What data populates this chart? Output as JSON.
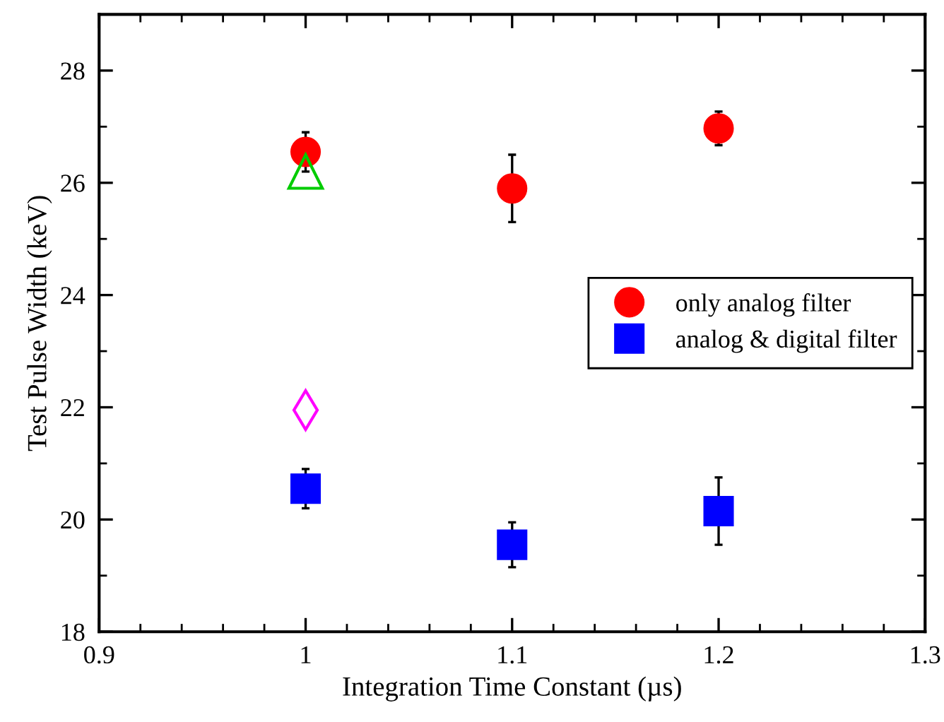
{
  "chart_data": {
    "type": "scatter",
    "xlabel": "Integration Time Constant (µs)",
    "ylabel": "Test Pulse Width (keV)",
    "xlim": [
      0.9,
      1.3
    ],
    "xticks": [
      0.9,
      1,
      1.1,
      1.2,
      1.3
    ],
    "ylim": [
      18,
      29
    ],
    "yticks": [
      18,
      20,
      22,
      24,
      26,
      28
    ],
    "legend": "center right",
    "grid": false,
    "series": [
      {
        "name": "only analog filter",
        "color": "#ff0000",
        "marker": "circle",
        "x": [
          1.0,
          1.1,
          1.2
        ],
        "values": [
          26.55,
          25.9,
          26.97
        ],
        "errors": [
          0.35,
          0.6,
          0.3
        ]
      },
      {
        "name": "analog & digital filter",
        "color": "#0000ff",
        "marker": "square",
        "x": [
          1.0,
          1.1,
          1.2
        ],
        "values": [
          20.55,
          19.55,
          20.15
        ],
        "errors": [
          0.35,
          0.4,
          0.6
        ]
      },
      {
        "color": "#00cc00",
        "marker": "triangle",
        "x": [
          1.0
        ],
        "values": [
          26.2
        ]
      },
      {
        "color": "#ff00ff",
        "marker": "diamond",
        "x": [
          1.0
        ],
        "values": [
          21.95
        ]
      }
    ]
  }
}
